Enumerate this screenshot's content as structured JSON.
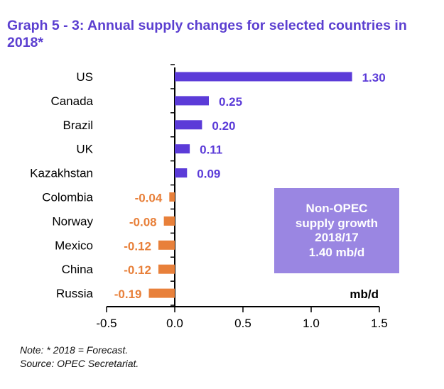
{
  "chart_data": {
    "type": "bar",
    "orientation": "horizontal",
    "title": "Graph 5 - 3: Annual supply changes for selected countries in 2018*",
    "categories": [
      "US",
      "Canada",
      "Brazil",
      "UK",
      "Kazakhstan",
      "Colombia",
      "Norway",
      "Mexico",
      "China",
      "Russia"
    ],
    "values": [
      1.3,
      0.25,
      0.2,
      0.11,
      0.09,
      -0.04,
      -0.08,
      -0.12,
      -0.12,
      -0.19
    ],
    "value_labels": [
      "1.30",
      "0.25",
      "0.20",
      "0.11",
      "0.09",
      "-0.04",
      "-0.08",
      "-0.12",
      "-0.12",
      "-0.19"
    ],
    "xlim": [
      -0.5,
      1.5
    ],
    "xticks": [
      -0.5,
      0.0,
      0.5,
      1.0,
      1.5
    ],
    "xtick_labels": [
      "-0.5",
      "0.0",
      "0.5",
      "1.0",
      "1.5"
    ],
    "unit_label": "mb/d",
    "grid": false,
    "colors": {
      "positive": "#5b3bd8",
      "negative": "#e8803a",
      "box": "#9a86e2",
      "title": "#5b3fd0"
    },
    "annotation": [
      "Non-OPEC",
      "supply growth",
      "2018/17",
      "1.40 mb/d"
    ]
  },
  "notes": [
    "Note: * 2018 = Forecast.",
    "Source: OPEC Secretariat."
  ]
}
